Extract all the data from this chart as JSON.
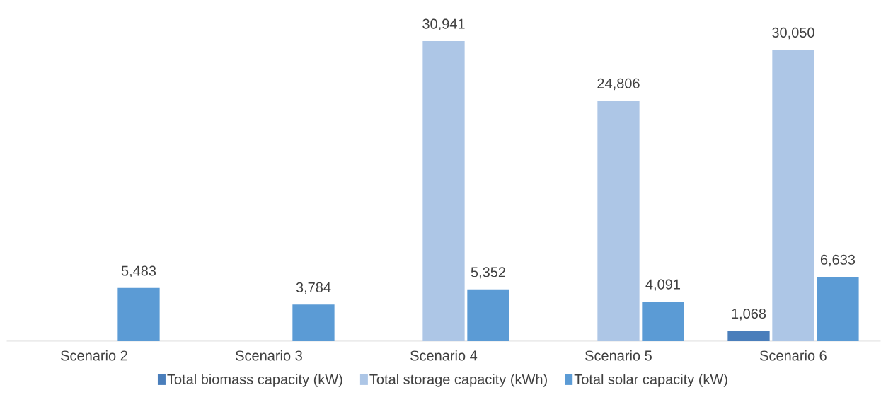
{
  "chart_data": {
    "type": "bar",
    "categories": [
      "Scenario 2",
      "Scenario 3",
      "Scenario 4",
      "Scenario 5",
      "Scenario 6"
    ],
    "series": [
      {
        "name": "Total biomass capacity (kW)",
        "color": "#4a7ebb",
        "values": [
          null,
          null,
          null,
          null,
          1068
        ],
        "value_labels": [
          null,
          null,
          null,
          null,
          "1,068"
        ]
      },
      {
        "name": "Total storage capacity (kWh)",
        "color": "#adc6e6",
        "values": [
          null,
          null,
          30941,
          24806,
          30050
        ],
        "value_labels": [
          null,
          null,
          "30,941",
          "24,806",
          "30,050"
        ]
      },
      {
        "name": "Total solar capacity (kW)",
        "color": "#5b9bd5",
        "values": [
          5483,
          3784,
          5352,
          4091,
          6633
        ],
        "value_labels": [
          "5,483",
          "3,784",
          "5,352",
          "4,091",
          "6,633"
        ]
      }
    ],
    "legend": "bottom"
  }
}
